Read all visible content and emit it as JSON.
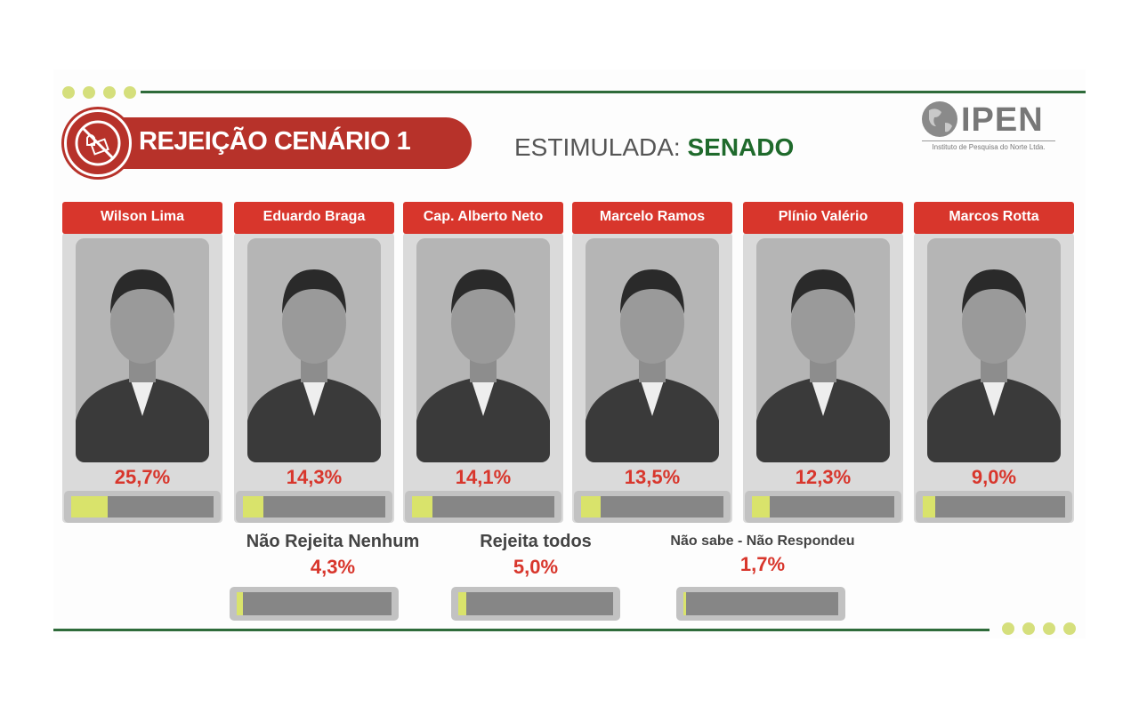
{
  "header": {
    "title": "REJEIÇÃO CENÁRIO 1",
    "subtitle_prefix": "ESTIMULADA: ",
    "subtitle_highlight": "SENADO",
    "title_icon": "no-voting-icon"
  },
  "logo": {
    "name": "IPEN",
    "tagline": "Instituto de Pesquisa do Norte Ltda."
  },
  "colors": {
    "red": "#d8362c",
    "title_red": "#b7322a",
    "green": "#1f6a2c",
    "bar_fill": "#d9e36b",
    "bar_track": "#868686",
    "dots": "#d5df7c"
  },
  "chart_data": {
    "type": "bar",
    "title": "REJEIÇÃO CENÁRIO 1",
    "categories": [
      "Wilson Lima",
      "Eduardo Braga",
      "Cap. Alberto Neto",
      "Marcelo Ramos",
      "Plínio Valério",
      "Marcos Rotta",
      "Não Rejeita Nenhum",
      "Rejeita todos",
      "Não sabe - Não Respondeu"
    ],
    "values": [
      25.7,
      14.3,
      14.1,
      13.5,
      12.3,
      9.0,
      4.3,
      5.0,
      1.7
    ],
    "labels": [
      "25,7%",
      "14,3%",
      "14,1%",
      "13,5%",
      "12,3%",
      "9,0%",
      "4,3%",
      "5,0%",
      "1,7%"
    ],
    "ylim": [
      0,
      100
    ],
    "unit": "%"
  }
}
